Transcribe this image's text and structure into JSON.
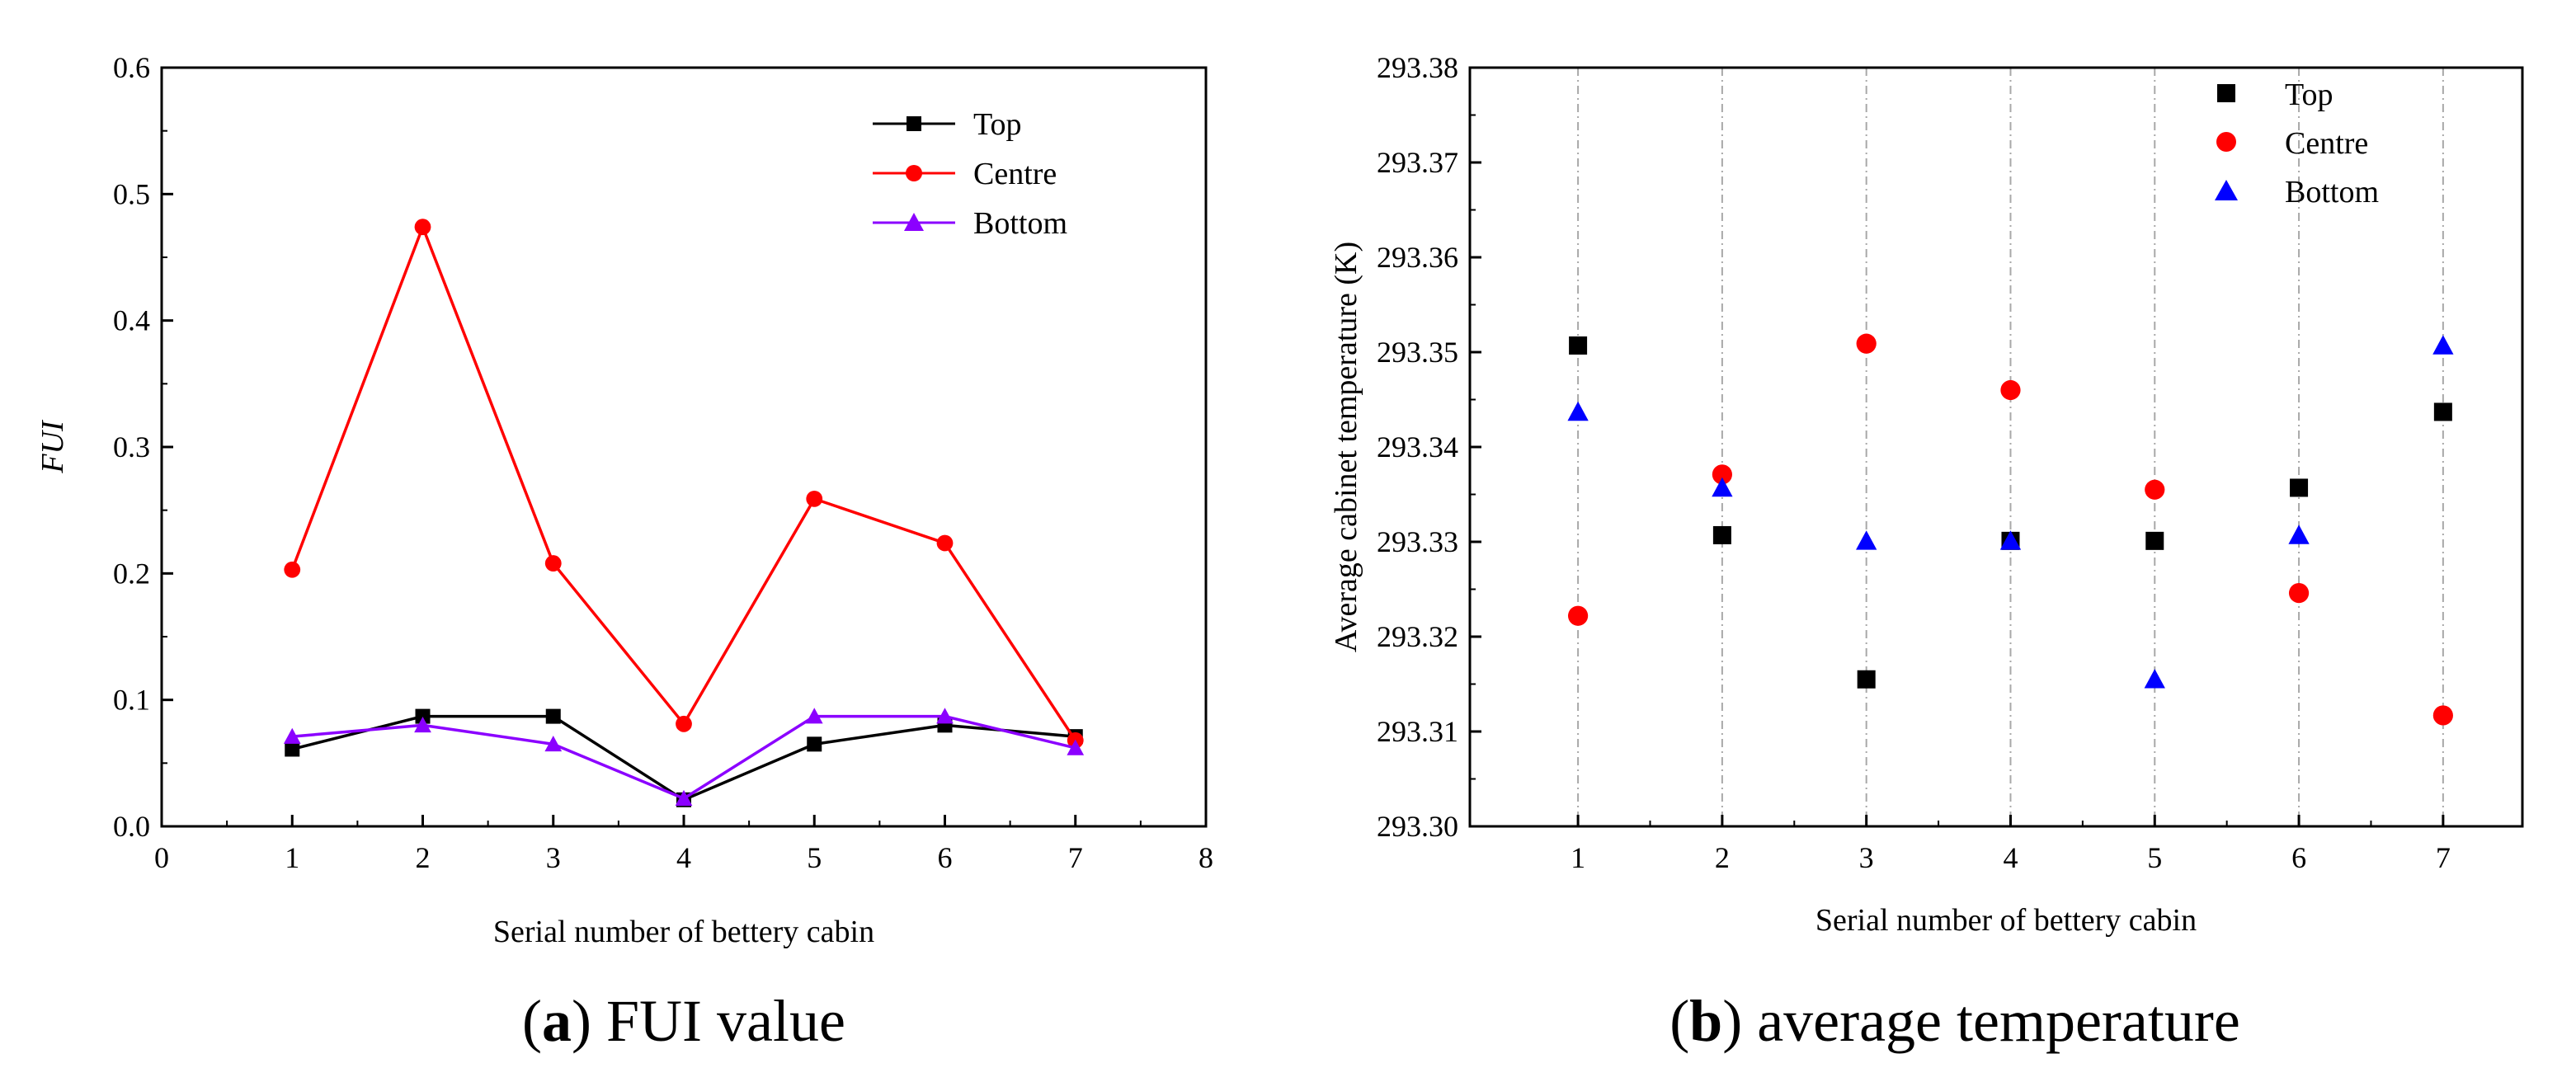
{
  "chart_data": [
    {
      "id": "a",
      "type": "line",
      "title": "",
      "caption_letter": "a",
      "caption_text": "FUI value",
      "xlabel": "Serial number of bettery cabin",
      "ylabel": "FUI",
      "xlim": [
        0,
        8
      ],
      "ylim": [
        0.0,
        0.6
      ],
      "xticks": [
        0,
        1,
        2,
        3,
        4,
        5,
        6,
        7,
        8
      ],
      "xtick_labels": [
        "0",
        "1",
        "2",
        "3",
        "4",
        "5",
        "6",
        "7",
        "8"
      ],
      "yticks": [
        0.0,
        0.1,
        0.2,
        0.3,
        0.4,
        0.5,
        0.6
      ],
      "ytick_labels": [
        "0.0",
        "0.1",
        "0.2",
        "0.3",
        "0.4",
        "0.5",
        "0.6"
      ],
      "grid": false,
      "legend_position": "top-right",
      "x": [
        1,
        2,
        3,
        4,
        5,
        6,
        7
      ],
      "series": [
        {
          "name": "Top",
          "color": "#000000",
          "marker": "square",
          "values": [
            0.061,
            0.087,
            0.087,
            0.021,
            0.065,
            0.08,
            0.071
          ]
        },
        {
          "name": "Centre",
          "color": "#ff0000",
          "marker": "circle",
          "values": [
            0.203,
            0.474,
            0.208,
            0.081,
            0.259,
            0.224,
            0.068
          ]
        },
        {
          "name": "Bottom",
          "color": "#8b00ff",
          "marker": "triangle",
          "values": [
            0.071,
            0.08,
            0.065,
            0.022,
            0.087,
            0.087,
            0.062
          ]
        }
      ]
    },
    {
      "id": "b",
      "type": "scatter",
      "title": "",
      "caption_letter": "b",
      "caption_text": "average temperature",
      "xlabel": "Serial number of bettery cabin",
      "ylabel": "Average cabinet temperature (K)",
      "xlim": [
        0.25,
        7.55
      ],
      "ylim": [
        293.3,
        293.38
      ],
      "xticks": [
        1,
        2,
        3,
        4,
        5,
        6,
        7
      ],
      "xtick_labels": [
        "1",
        "2",
        "3",
        "4",
        "5",
        "6",
        "7"
      ],
      "yticks": [
        293.3,
        293.31,
        293.32,
        293.33,
        293.34,
        293.35,
        293.36,
        293.37,
        293.38
      ],
      "ytick_labels": [
        "293.30",
        "293.31",
        "293.32",
        "293.33",
        "293.34",
        "293.35",
        "293.36",
        "293.37",
        "293.38"
      ],
      "grid": "vertical dash-dot lines at x ticks",
      "legend_position": "top-right",
      "x": [
        1,
        2,
        3,
        4,
        5,
        6,
        7
      ],
      "series": [
        {
          "name": "Top",
          "color": "#000000",
          "marker": "square",
          "values": [
            293.3507,
            293.3307,
            293.3155,
            293.3301,
            293.3301,
            293.3357,
            293.3437
          ]
        },
        {
          "name": "Centre",
          "color": "#ff0000",
          "marker": "circle",
          "values": [
            293.3222,
            293.3371,
            293.3509,
            293.346,
            293.3355,
            293.3246,
            293.3117
          ]
        },
        {
          "name": "Bottom",
          "color": "#0000ff",
          "marker": "triangle",
          "values": [
            293.3437,
            293.3357,
            293.3301,
            293.3301,
            293.3155,
            293.3307,
            293.3507
          ]
        }
      ]
    }
  ]
}
